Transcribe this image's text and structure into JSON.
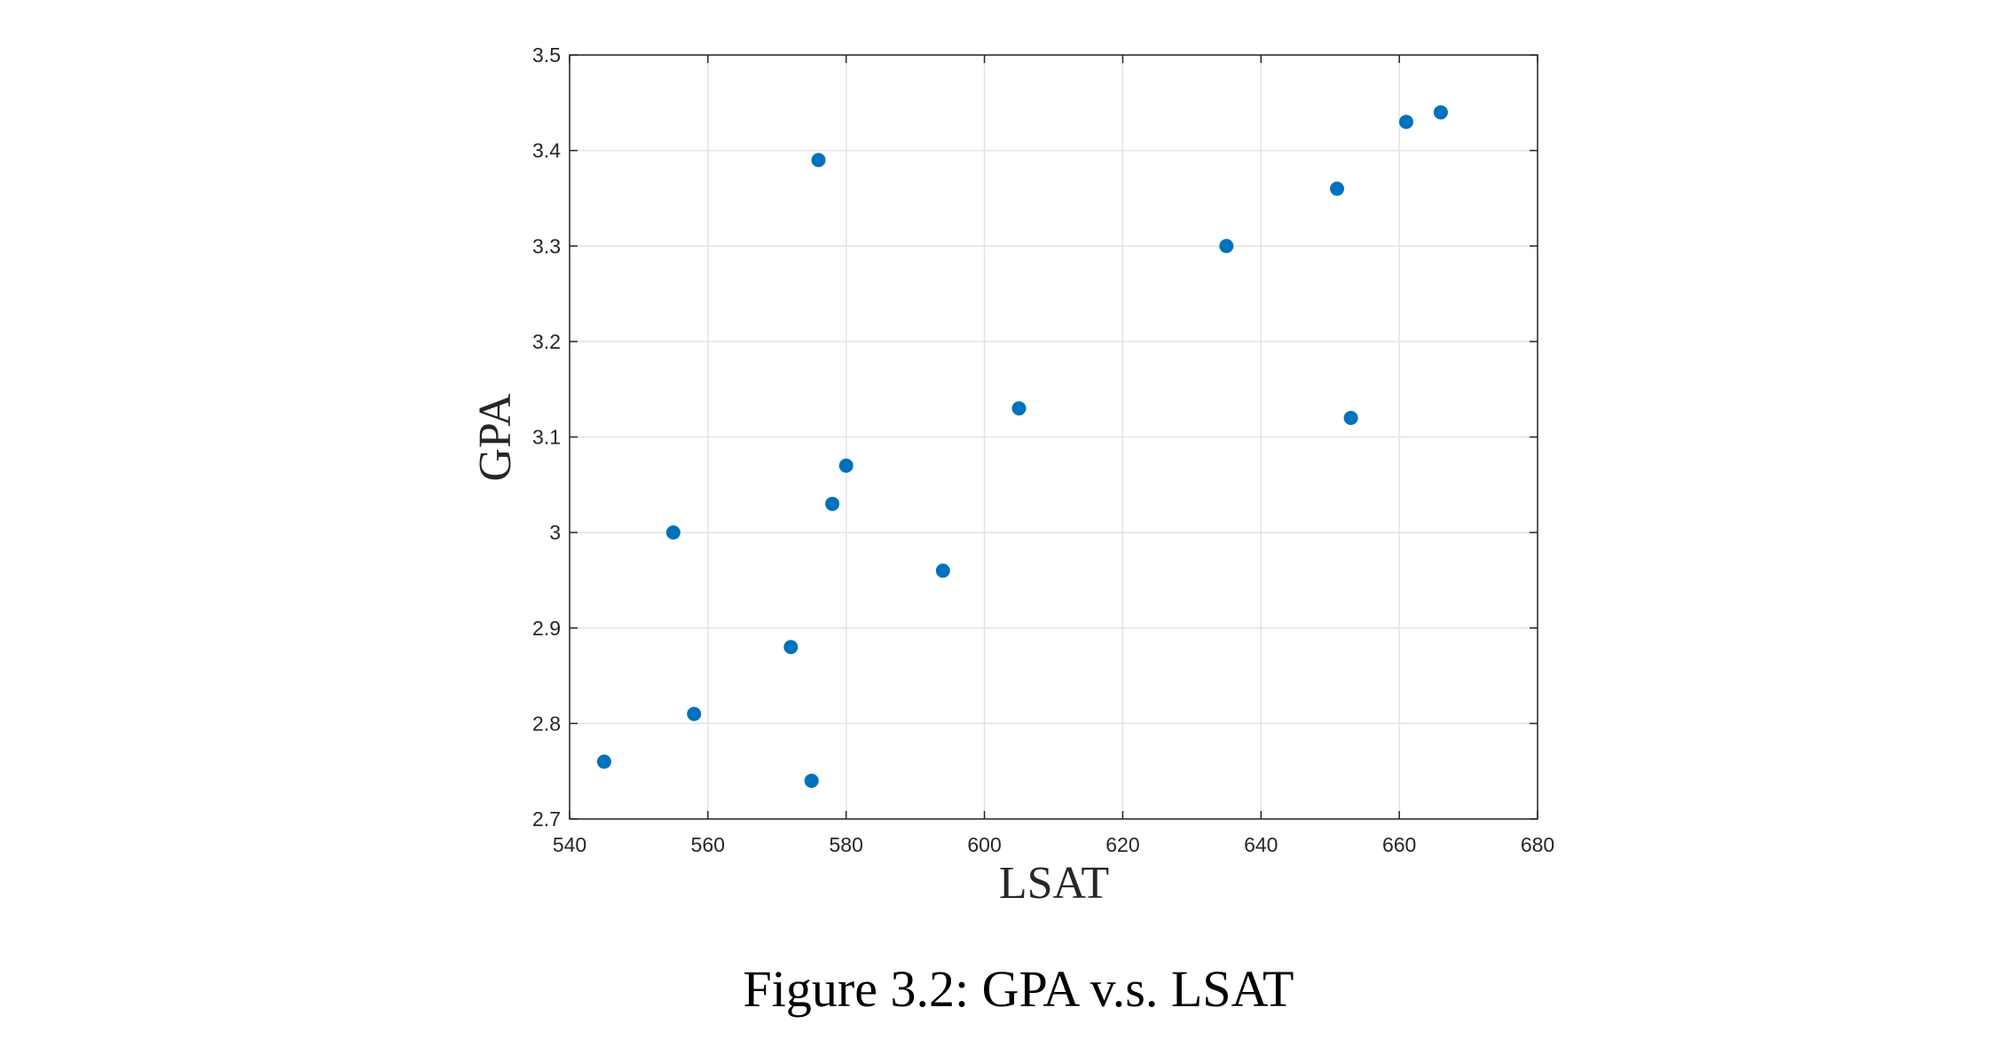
{
  "chart_data": {
    "type": "scatter",
    "title": "",
    "xlabel": "LSAT",
    "ylabel": "GPA",
    "xlim": [
      540,
      680
    ],
    "ylim": [
      2.7,
      3.5
    ],
    "xticks": [
      "540",
      "560",
      "580",
      "600",
      "620",
      "640",
      "660",
      "680"
    ],
    "yticks": [
      "2.7",
      "2.8",
      "2.9",
      "3",
      "3.1",
      "3.2",
      "3.3",
      "3.4",
      "3.5"
    ],
    "grid": true,
    "marker_color": "#0072BD",
    "points": [
      {
        "x": 576,
        "y": 3.39
      },
      {
        "x": 635,
        "y": 3.3
      },
      {
        "x": 558,
        "y": 2.81
      },
      {
        "x": 578,
        "y": 3.03
      },
      {
        "x": 666,
        "y": 3.44
      },
      {
        "x": 580,
        "y": 3.07
      },
      {
        "x": 555,
        "y": 3.0
      },
      {
        "x": 661,
        "y": 3.43
      },
      {
        "x": 651,
        "y": 3.36
      },
      {
        "x": 605,
        "y": 3.13
      },
      {
        "x": 653,
        "y": 3.12
      },
      {
        "x": 575,
        "y": 2.74
      },
      {
        "x": 545,
        "y": 2.76
      },
      {
        "x": 572,
        "y": 2.88
      },
      {
        "x": 594,
        "y": 2.96
      }
    ]
  },
  "caption": "Figure 3.2: GPA v.s. LSAT"
}
